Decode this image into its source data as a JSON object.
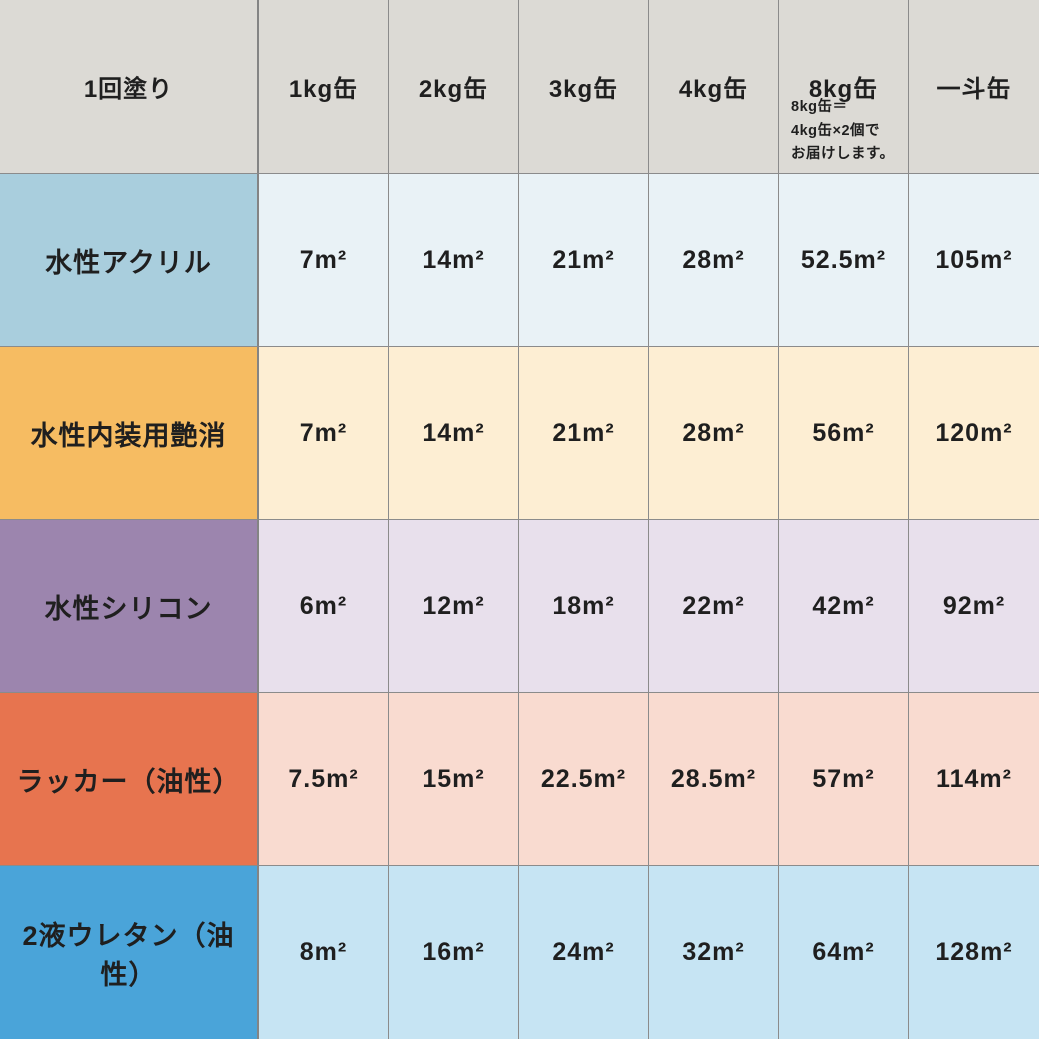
{
  "table": {
    "header": {
      "label": "1回塗り",
      "columns": [
        "1kg缶",
        "2kg缶",
        "3kg缶",
        "4kg缶",
        "8kg缶",
        "一斗缶"
      ],
      "note": "8kg缶＝\n4kg缶×2個で\nお届けします。"
    },
    "rows": [
      {
        "label": "水性アクリル",
        "values": [
          "7m²",
          "14m²",
          "21m²",
          "28m²",
          "52.5m²",
          "105m²"
        ]
      },
      {
        "label": "水性内装用艶消",
        "values": [
          "7m²",
          "14m²",
          "21m²",
          "28m²",
          "56m²",
          "120m²"
        ]
      },
      {
        "label": "水性シリコン",
        "values": [
          "6m²",
          "12m²",
          "18m²",
          "22m²",
          "42m²",
          "92m²"
        ]
      },
      {
        "label": "ラッカー（油性）",
        "values": [
          "7.5m²",
          "15m²",
          "22.5m²",
          "28.5m²",
          "57m²",
          "114m²"
        ]
      },
      {
        "label": "2液ウレタン（油性）",
        "values": [
          "8m²",
          "16m²",
          "24m²",
          "32m²",
          "64m²",
          "128m²"
        ]
      }
    ]
  },
  "colors": {
    "header_bg": "#dcdad5",
    "grid_line": "#8b8b8b",
    "text": "#1f1f1f",
    "rows": [
      {
        "label_bg": "#a9cedd",
        "cell_bg": "#e9f2f6"
      },
      {
        "label_bg": "#f6bc62",
        "cell_bg": "#fdeed3"
      },
      {
        "label_bg": "#9c85ae",
        "cell_bg": "#e8e0ec"
      },
      {
        "label_bg": "#e7744f",
        "cell_bg": "#f9dbd0"
      },
      {
        "label_bg": "#4aa4d9",
        "cell_bg": "#c6e4f3"
      }
    ]
  },
  "chart_data": {
    "type": "table",
    "title": "1回塗り",
    "unit": "㎡",
    "columns": [
      "1kg缶",
      "2kg缶",
      "3kg缶",
      "4kg缶",
      "8kg缶",
      "一斗缶"
    ],
    "rows": [
      {
        "name": "水性アクリル",
        "values": [
          7,
          14,
          21,
          28,
          52.5,
          105
        ]
      },
      {
        "name": "水性内装用艶消",
        "values": [
          7,
          14,
          21,
          28,
          56,
          120
        ]
      },
      {
        "name": "水性シリコン",
        "values": [
          6,
          12,
          18,
          22,
          42,
          92
        ]
      },
      {
        "name": "ラッカー（油性）",
        "values": [
          7.5,
          15,
          22.5,
          28.5,
          57,
          114
        ]
      },
      {
        "name": "2液ウレタン（油性）",
        "values": [
          8,
          16,
          24,
          32,
          64,
          128
        ]
      }
    ],
    "annotations": [
      "8kg缶＝4kg缶×2個でお届けします。"
    ],
    "layout": {
      "header_position": "top",
      "row_label_position": "left",
      "grid": true
    }
  }
}
